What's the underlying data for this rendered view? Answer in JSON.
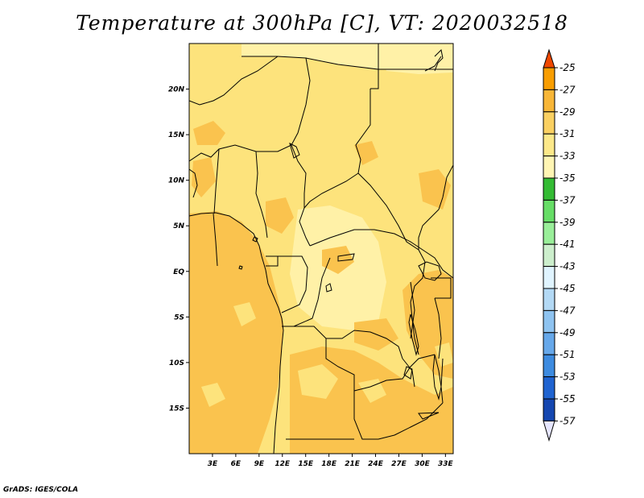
{
  "title": "Temperature at 300hPa [C], VT: 2020032518",
  "credit": "GrADS: IGES/COLA",
  "map": {
    "lon_range": [
      0,
      34
    ],
    "lat_range": [
      -20,
      25
    ],
    "lat_ticks": [
      {
        "value": 20,
        "label": "20N"
      },
      {
        "value": 15,
        "label": "15N"
      },
      {
        "value": 10,
        "label": "10N"
      },
      {
        "value": 5,
        "label": "5N"
      },
      {
        "value": 0,
        "label": "EQ"
      },
      {
        "value": -5,
        "label": "5S"
      },
      {
        "value": -10,
        "label": "10S"
      },
      {
        "value": -15,
        "label": "15S"
      }
    ],
    "lon_ticks": [
      {
        "value": 3,
        "label": "3E"
      },
      {
        "value": 6,
        "label": "6E"
      },
      {
        "value": 9,
        "label": "9E"
      },
      {
        "value": 12,
        "label": "12E"
      },
      {
        "value": 15,
        "label": "15E"
      },
      {
        "value": 18,
        "label": "18E"
      },
      {
        "value": 21,
        "label": "21E"
      },
      {
        "value": 24,
        "label": "24E"
      },
      {
        "value": 27,
        "label": "27E"
      },
      {
        "value": 30,
        "label": "30E"
      },
      {
        "value": 33,
        "label": "33E"
      }
    ],
    "fill_colors": {
      "t_35_33": "#fff1a7",
      "t_33_31": "#fde37c",
      "t_31_29": "#fac34e",
      "land_border": "#000000"
    }
  },
  "colorbar": {
    "labels": [
      "-25",
      "-27",
      "-29",
      "-31",
      "-33",
      "-35",
      "-37",
      "-39",
      "-41",
      "-43",
      "-45",
      "-47",
      "-49",
      "-51",
      "-53",
      "-55",
      "-57"
    ],
    "over_color": "#f04800",
    "under_color": "#e6e6ff",
    "colors": [
      "#f75c0b",
      "#f89d00",
      "#f8b637",
      "#fad061",
      "#fce889",
      "#fff5b3",
      "#33bb33",
      "#66dd66",
      "#99ee99",
      "#cceecc",
      "#e0f4ff",
      "#b3d9f5",
      "#8ec3f0",
      "#66a8ea",
      "#3d8be0",
      "#1f63d0",
      "#1446b0",
      "#0d2c8f",
      "#0c0a70"
    ]
  }
}
